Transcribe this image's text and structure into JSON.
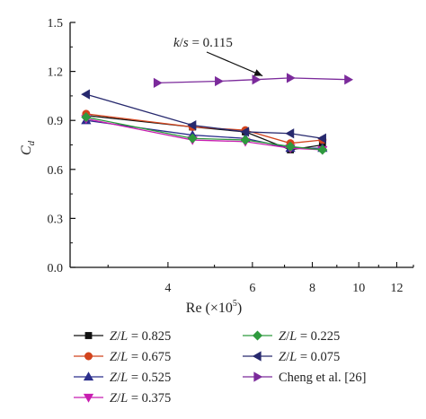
{
  "chart_data": {
    "type": "line",
    "xlabel_text": "Re (×10",
    "xlabel_sup": "5",
    "xlabel_close": ")",
    "ylabel_main": "C",
    "ylabel_sub": "d",
    "x_scale": "log",
    "xlim": [
      2.5,
      13
    ],
    "ylim": [
      0,
      1.5
    ],
    "xticks": [
      4,
      6,
      8,
      10,
      12
    ],
    "yticks": [
      0.0,
      0.3,
      0.6,
      0.9,
      1.2,
      1.5
    ],
    "ytick_labels": [
      "0.0",
      "0.3",
      "0.6",
      "0.9",
      "1.2",
      "1.5"
    ],
    "grid": false,
    "legend_position": "bottom",
    "annotation": {
      "text": "k/s = 0.115",
      "points_to": {
        "x": 6.3,
        "y": 1.14
      }
    },
    "series": [
      {
        "name": "Z/L = 0.825",
        "color": "#111111",
        "marker": "square",
        "x": [
          2.7,
          4.5,
          5.8,
          7.2,
          8.4
        ],
        "y": [
          0.93,
          0.86,
          0.83,
          0.72,
          0.75
        ]
      },
      {
        "name": "Z/L = 0.675",
        "color": "#d2441d",
        "marker": "circle",
        "x": [
          2.7,
          4.5,
          5.8,
          7.2,
          8.4
        ],
        "y": [
          0.94,
          0.86,
          0.84,
          0.76,
          0.78
        ]
      },
      {
        "name": "Z/L = 0.525",
        "color": "#2b2e8c",
        "marker": "triangle-up",
        "x": [
          2.7,
          4.5,
          5.8,
          7.2,
          8.4
        ],
        "y": [
          0.9,
          0.81,
          0.79,
          0.73,
          0.73
        ]
      },
      {
        "name": "Z/L = 0.375",
        "color": "#c81db0",
        "marker": "triangle-down",
        "x": [
          2.7,
          4.5,
          5.8,
          7.2,
          8.4
        ],
        "y": [
          0.91,
          0.78,
          0.77,
          0.73,
          0.72
        ]
      },
      {
        "name": "Z/L = 0.225",
        "color": "#2e9a3e",
        "marker": "diamond",
        "x": [
          2.7,
          4.5,
          5.8,
          7.2,
          8.4
        ],
        "y": [
          0.92,
          0.79,
          0.78,
          0.74,
          0.72
        ]
      },
      {
        "name": "Z/L = 0.075",
        "color": "#27296e",
        "marker": "triangle-left",
        "x": [
          2.7,
          4.5,
          5.8,
          7.2,
          8.4
        ],
        "y": [
          1.06,
          0.87,
          0.83,
          0.82,
          0.79
        ]
      },
      {
        "name": "Cheng et al. [26]",
        "color": "#7b2a9b",
        "marker": "triangle-right",
        "x": [
          3.8,
          5.1,
          6.1,
          7.2,
          9.5
        ],
        "y": [
          1.13,
          1.14,
          1.15,
          1.16,
          1.15
        ]
      }
    ]
  }
}
